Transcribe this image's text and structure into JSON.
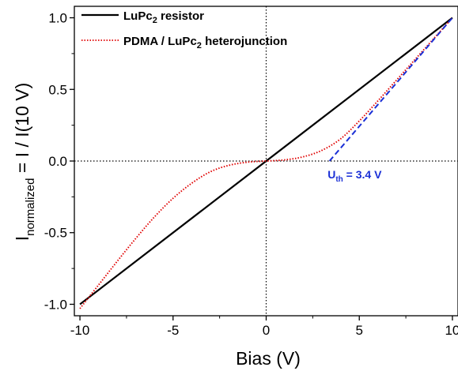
{
  "chart_data": {
    "type": "line",
    "xlabel": "Bias (V)",
    "ylabel": {
      "main": "I",
      "sub": "normalized",
      "rest": " = I / I(10 V)"
    },
    "xlim": [
      -10.3,
      10.3
    ],
    "ylim": [
      -1.08,
      1.08
    ],
    "xticks": [
      -10,
      -5,
      0,
      5,
      10
    ],
    "yticks": [
      -1.0,
      -0.5,
      0.0,
      0.5,
      1.0
    ],
    "xtick_labels": [
      "-10",
      "-5",
      "0",
      "5",
      "10"
    ],
    "ytick_labels": [
      "-1.0",
      "-0.5",
      "0.0",
      "0.5",
      "1.0"
    ],
    "grid": false,
    "legend_position": "top-left",
    "series": [
      {
        "name": {
          "pre": "LuPc",
          "sub": "2",
          "post": " resistor"
        },
        "color": "#000000",
        "style": "solid",
        "x": [
          -10,
          10
        ],
        "y": [
          -1.0,
          1.0
        ]
      },
      {
        "name": {
          "pre": "PDMA / LuPc",
          "sub": "2",
          "post": " heterojunction"
        },
        "color": "#e00000",
        "style": "dotted",
        "x": [
          -10,
          -9,
          -8,
          -7,
          -6,
          -5,
          -4,
          -3,
          -2,
          -1,
          0,
          1,
          2,
          3,
          4,
          5,
          6,
          7,
          8,
          9,
          10
        ],
        "y": [
          -1.03,
          -0.865,
          -0.7,
          -0.54,
          -0.39,
          -0.26,
          -0.155,
          -0.075,
          -0.03,
          -0.008,
          0.0,
          0.008,
          0.03,
          0.075,
          0.155,
          0.28,
          0.42,
          0.565,
          0.71,
          0.855,
          1.0
        ]
      }
    ],
    "reference_lines": {
      "x_zero": {
        "color": "#000000",
        "style": "dotted"
      },
      "y_zero": {
        "color": "#000000",
        "style": "dotted"
      }
    },
    "threshold_line": {
      "color": "#1a2fd6",
      "style": "dashed",
      "x": [
        3.4,
        10
      ],
      "y": [
        0.0,
        1.0
      ]
    },
    "annotation": {
      "pre": "U",
      "sub": "th",
      "post": " = 3.4 V",
      "color": "#1a2fd6",
      "at_x": 3.3,
      "at_y": -0.12
    }
  }
}
